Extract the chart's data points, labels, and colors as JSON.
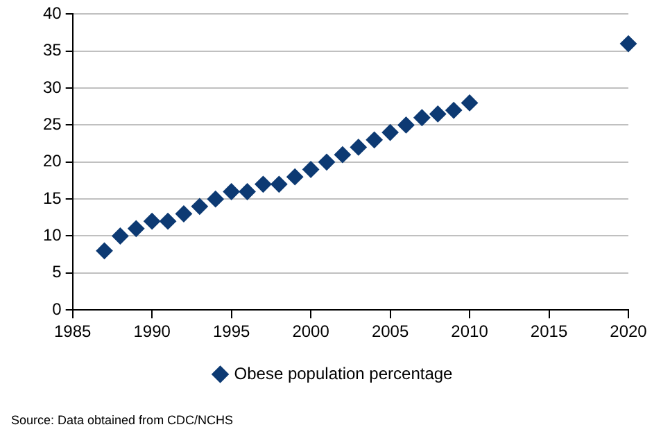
{
  "chart_data": {
    "type": "scatter",
    "annotations": [
      "Source: Data obtained from CDC/NCHS"
    ],
    "x": [
      1987,
      1988,
      1989,
      1990,
      1991,
      1992,
      1993,
      1994,
      1995,
      1996,
      1997,
      1998,
      1999,
      2000,
      2001,
      2002,
      2003,
      2004,
      2005,
      2006,
      2007,
      2008,
      2009,
      2010,
      2020
    ],
    "series": [
      {
        "name": "Obese population percentage",
        "color": "#0d3a73",
        "values": [
          8,
          10,
          11,
          12,
          12,
          13,
          14,
          15,
          16,
          16,
          17,
          17,
          18,
          19,
          20,
          21,
          22,
          23,
          24,
          25,
          26,
          26.5,
          27,
          28,
          36
        ]
      }
    ],
    "xlim": [
      1985,
      2020
    ],
    "xticks": [
      1985,
      1990,
      1995,
      2000,
      2005,
      2010,
      2015,
      2020
    ],
    "ylim": [
      0,
      40
    ],
    "yticks": [
      0,
      5,
      10,
      15,
      20,
      25,
      30,
      35,
      40
    ],
    "grid": "y",
    "legend": "bottom",
    "marker": "diamond"
  }
}
